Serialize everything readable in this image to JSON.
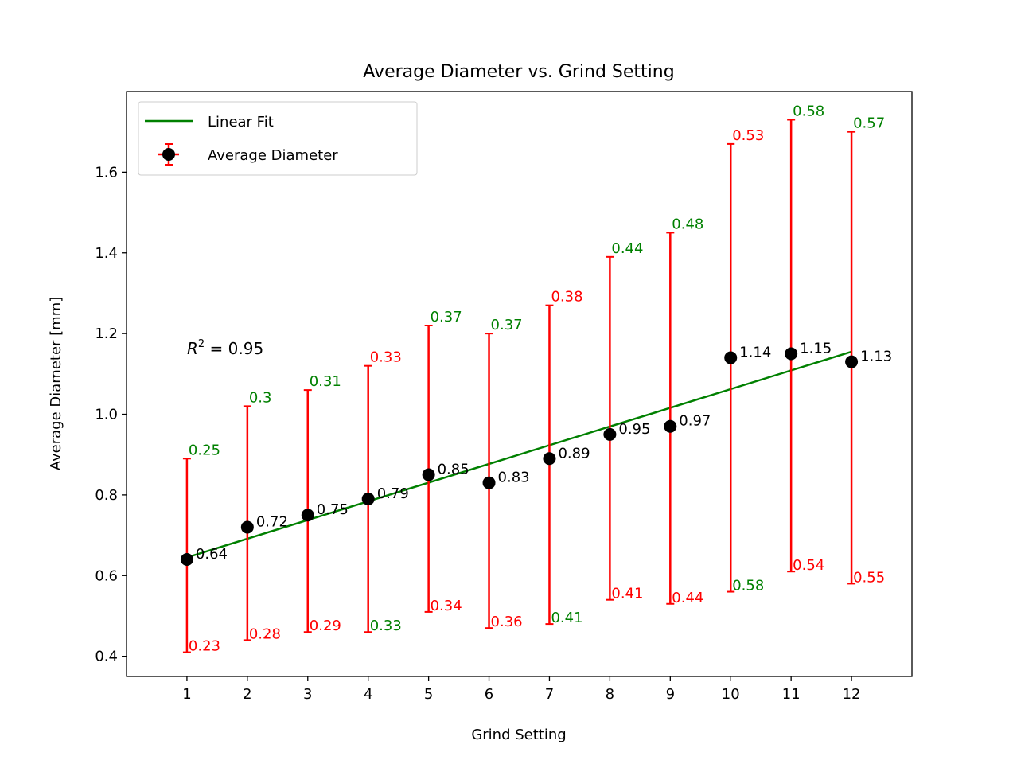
{
  "chart_data": {
    "type": "scatter",
    "title": "Average Diameter vs. Grind Setting",
    "xlabel": "Grind Setting",
    "ylabel": "Average Diameter [mm]",
    "xlim": [
      0,
      13
    ],
    "ylim": [
      0.35,
      1.8
    ],
    "x_ticks": [
      1,
      2,
      3,
      4,
      5,
      6,
      7,
      8,
      9,
      10,
      11,
      12
    ],
    "y_ticks": [
      0.4,
      0.6,
      0.8,
      1.0,
      1.2,
      1.4,
      1.6
    ],
    "y_tick_labels": [
      "0.4",
      "0.6",
      "0.8",
      "1.0",
      "1.2",
      "1.4",
      "1.6"
    ],
    "grid": false,
    "legend_position": "top-left",
    "annotation": {
      "r2_prefix": "R",
      "r2_sup": "2",
      "r2_text": " = 0.95"
    },
    "series": [
      {
        "name": "Average Diameter",
        "kind": "errorbar",
        "marker_color": "#000000",
        "error_color": "#ff0000",
        "x": [
          1,
          2,
          3,
          4,
          5,
          6,
          7,
          8,
          9,
          10,
          11,
          12
        ],
        "y": [
          0.64,
          0.72,
          0.75,
          0.79,
          0.85,
          0.83,
          0.89,
          0.95,
          0.97,
          1.14,
          1.15,
          1.13
        ],
        "y_labels": [
          "0.64",
          "0.72",
          "0.75",
          "0.79",
          "0.85",
          "0.83",
          "0.89",
          "0.95",
          "0.97",
          "1.14",
          "1.15",
          "1.13"
        ],
        "err_upper": [
          0.25,
          0.3,
          0.31,
          0.33,
          0.37,
          0.37,
          0.38,
          0.44,
          0.48,
          0.53,
          0.58,
          0.57
        ],
        "err_upper_labels": [
          "0.25",
          "0.3",
          "0.31",
          "0.33",
          "0.37",
          "0.37",
          "0.38",
          "0.44",
          "0.48",
          "0.53",
          "0.58",
          "0.57"
        ],
        "err_upper_colors": [
          "#008000",
          "#008000",
          "#008000",
          "#ff0000",
          "#008000",
          "#008000",
          "#ff0000",
          "#008000",
          "#008000",
          "#ff0000",
          "#008000",
          "#008000"
        ],
        "err_lower": [
          0.23,
          0.28,
          0.29,
          0.33,
          0.34,
          0.36,
          0.41,
          0.41,
          0.44,
          0.58,
          0.54,
          0.55
        ],
        "err_lower_labels": [
          "0.23",
          "0.28",
          "0.29",
          "0.33",
          "0.34",
          "0.36",
          "0.41",
          "0.41",
          "0.44",
          "0.58",
          "0.54",
          "0.55"
        ],
        "err_lower_colors": [
          "#ff0000",
          "#ff0000",
          "#ff0000",
          "#008000",
          "#ff0000",
          "#ff0000",
          "#008000",
          "#ff0000",
          "#ff0000",
          "#008000",
          "#ff0000",
          "#ff0000"
        ]
      },
      {
        "name": "Linear Fit",
        "kind": "line",
        "color": "#008000",
        "x": [
          1,
          12
        ],
        "y": [
          0.645,
          1.155
        ]
      }
    ]
  }
}
